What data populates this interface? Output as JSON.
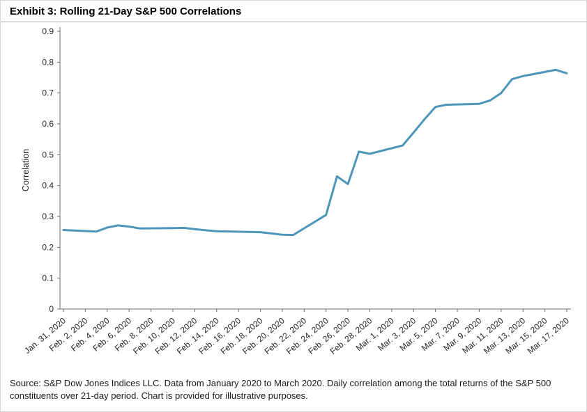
{
  "header": {
    "title": "Exhibit 3: Rolling 21-Day S&P 500 Correlations"
  },
  "footer": {
    "source_text": "Source: S&P Dow Jones Indices LLC. Data from January 2020 to March 2020. Daily correlation among the total returns of the S&P 500 constituents over 21-day period. Chart is provided for illustrative purposes."
  },
  "chart_data": {
    "type": "line",
    "title": "Exhibit 3: Rolling 21-Day S&P 500 Correlations",
    "xlabel": "",
    "ylabel": "Correlation",
    "ylim": [
      0,
      0.9
    ],
    "grid": false,
    "legend": "none",
    "line_color": "#4E95BA",
    "y_ticks": [
      "0",
      "0.1",
      "0.2",
      "0.3",
      "0.4",
      "0.5",
      "0.6",
      "0.7",
      "0.8",
      "0.9"
    ],
    "x_ticks": [
      {
        "date": "2020-01-31",
        "label": "Jan. 31, 2020"
      },
      {
        "date": "2020-02-02",
        "label": "Feb. 2, 2020"
      },
      {
        "date": "2020-02-04",
        "label": "Feb. 4, 2020"
      },
      {
        "date": "2020-02-06",
        "label": "Feb. 6, 2020"
      },
      {
        "date": "2020-02-08",
        "label": "Feb. 8, 2020"
      },
      {
        "date": "2020-02-10",
        "label": "Feb. 10, 2020"
      },
      {
        "date": "2020-02-12",
        "label": "Feb. 12, 2020"
      },
      {
        "date": "2020-02-14",
        "label": "Feb. 14, 2020"
      },
      {
        "date": "2020-02-16",
        "label": "Feb. 16, 2020"
      },
      {
        "date": "2020-02-18",
        "label": "Feb. 18, 2020"
      },
      {
        "date": "2020-02-20",
        "label": "Feb. 20, 2020"
      },
      {
        "date": "2020-02-22",
        "label": "Feb. 22, 2020"
      },
      {
        "date": "2020-02-24",
        "label": "Feb. 24, 2020"
      },
      {
        "date": "2020-02-26",
        "label": "Feb. 26, 2020"
      },
      {
        "date": "2020-02-28",
        "label": "Feb. 28, 2020"
      },
      {
        "date": "2020-03-01",
        "label": "Mar. 1, 2020"
      },
      {
        "date": "2020-03-03",
        "label": "Mar. 3, 2020"
      },
      {
        "date": "2020-03-05",
        "label": "Mar. 5, 2020"
      },
      {
        "date": "2020-03-07",
        "label": "Mar. 7, 2020"
      },
      {
        "date": "2020-03-09",
        "label": "Mar. 9, 2020"
      },
      {
        "date": "2020-03-11",
        "label": "Mar. 11, 2020"
      },
      {
        "date": "2020-03-13",
        "label": "Mar. 13, 2020"
      },
      {
        "date": "2020-03-15",
        "label": "Mar. 15, 2020"
      },
      {
        "date": "2020-03-17",
        "label": "Mar. 17, 2020"
      }
    ],
    "series": [
      {
        "name": "Rolling 21-day S&P 500 correlation",
        "color": "#4E95BA",
        "points": [
          {
            "date": "2020-01-31",
            "value": 0.256
          },
          {
            "date": "2020-02-03",
            "value": 0.251
          },
          {
            "date": "2020-02-04",
            "value": 0.264
          },
          {
            "date": "2020-02-05",
            "value": 0.271
          },
          {
            "date": "2020-02-06",
            "value": 0.267
          },
          {
            "date": "2020-02-07",
            "value": 0.261
          },
          {
            "date": "2020-02-10",
            "value": 0.262
          },
          {
            "date": "2020-02-11",
            "value": 0.263
          },
          {
            "date": "2020-02-12",
            "value": 0.259
          },
          {
            "date": "2020-02-13",
            "value": 0.255
          },
          {
            "date": "2020-02-14",
            "value": 0.252
          },
          {
            "date": "2020-02-18",
            "value": 0.249
          },
          {
            "date": "2020-02-19",
            "value": 0.245
          },
          {
            "date": "2020-02-20",
            "value": 0.241
          },
          {
            "date": "2020-02-21",
            "value": 0.24
          },
          {
            "date": "2020-02-24",
            "value": 0.305
          },
          {
            "date": "2020-02-25",
            "value": 0.43
          },
          {
            "date": "2020-02-26",
            "value": 0.405
          },
          {
            "date": "2020-02-27",
            "value": 0.51
          },
          {
            "date": "2020-02-28",
            "value": 0.503
          },
          {
            "date": "2020-03-02",
            "value": 0.53
          },
          {
            "date": "2020-03-03",
            "value": 0.572
          },
          {
            "date": "2020-03-04",
            "value": 0.615
          },
          {
            "date": "2020-03-05",
            "value": 0.655
          },
          {
            "date": "2020-03-06",
            "value": 0.662
          },
          {
            "date": "2020-03-09",
            "value": 0.665
          },
          {
            "date": "2020-03-10",
            "value": 0.676
          },
          {
            "date": "2020-03-11",
            "value": 0.7
          },
          {
            "date": "2020-03-12",
            "value": 0.745
          },
          {
            "date": "2020-03-13",
            "value": 0.755
          },
          {
            "date": "2020-03-16",
            "value": 0.775
          },
          {
            "date": "2020-03-17",
            "value": 0.764
          }
        ]
      }
    ]
  }
}
